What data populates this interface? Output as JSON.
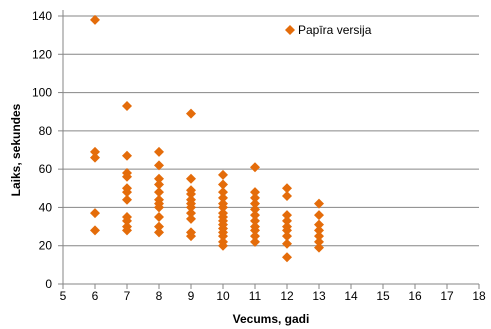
{
  "chart_data": {
    "type": "scatter",
    "title": "",
    "xlabel": "Vecums, gadi",
    "ylabel": "Laiks, sekundes",
    "xlim": [
      5,
      18
    ],
    "ylim": [
      0,
      140
    ],
    "x_ticks": [
      5,
      6,
      7,
      8,
      9,
      10,
      11,
      12,
      13,
      14,
      15,
      16,
      17,
      18
    ],
    "y_ticks": [
      0,
      20,
      40,
      60,
      80,
      100,
      120,
      140
    ],
    "grid": "horizontal",
    "legend_position": "top-right",
    "marker": "diamond",
    "series": [
      {
        "name": "Papīra versija",
        "color": "#E46C0A",
        "points": [
          [
            6,
            138
          ],
          [
            6,
            69
          ],
          [
            6,
            66
          ],
          [
            6,
            37
          ],
          [
            6,
            28
          ],
          [
            7,
            93
          ],
          [
            7,
            67
          ],
          [
            7,
            58
          ],
          [
            7,
            56
          ],
          [
            7,
            50
          ],
          [
            7,
            48
          ],
          [
            7,
            44
          ],
          [
            7,
            35
          ],
          [
            7,
            33
          ],
          [
            7,
            30
          ],
          [
            7,
            28
          ],
          [
            8,
            69
          ],
          [
            8,
            62
          ],
          [
            8,
            55
          ],
          [
            8,
            52
          ],
          [
            8,
            48
          ],
          [
            8,
            44
          ],
          [
            8,
            42
          ],
          [
            8,
            40
          ],
          [
            8,
            35
          ],
          [
            8,
            30
          ],
          [
            8,
            27
          ],
          [
            9,
            89
          ],
          [
            9,
            55
          ],
          [
            9,
            49
          ],
          [
            9,
            47
          ],
          [
            9,
            44
          ],
          [
            9,
            42
          ],
          [
            9,
            40
          ],
          [
            9,
            37
          ],
          [
            9,
            34
          ],
          [
            9,
            27
          ],
          [
            9,
            25
          ],
          [
            10,
            57
          ],
          [
            10,
            52
          ],
          [
            10,
            48
          ],
          [
            10,
            45
          ],
          [
            10,
            42
          ],
          [
            10,
            40
          ],
          [
            10,
            37
          ],
          [
            10,
            35
          ],
          [
            10,
            33
          ],
          [
            10,
            31
          ],
          [
            10,
            29
          ],
          [
            10,
            27
          ],
          [
            10,
            25
          ],
          [
            10,
            22
          ],
          [
            10,
            20
          ],
          [
            11,
            61
          ],
          [
            11,
            48
          ],
          [
            11,
            45
          ],
          [
            11,
            42
          ],
          [
            11,
            39
          ],
          [
            11,
            36
          ],
          [
            11,
            33
          ],
          [
            11,
            30
          ],
          [
            11,
            28
          ],
          [
            11,
            25
          ],
          [
            11,
            22
          ],
          [
            12,
            50
          ],
          [
            12,
            46
          ],
          [
            12,
            36
          ],
          [
            12,
            33
          ],
          [
            12,
            30
          ],
          [
            12,
            28
          ],
          [
            12,
            25
          ],
          [
            12,
            21
          ],
          [
            12,
            14
          ],
          [
            13,
            42
          ],
          [
            13,
            36
          ],
          [
            13,
            31
          ],
          [
            13,
            28
          ],
          [
            13,
            25
          ],
          [
            13,
            22
          ],
          [
            13,
            19
          ]
        ]
      }
    ]
  }
}
